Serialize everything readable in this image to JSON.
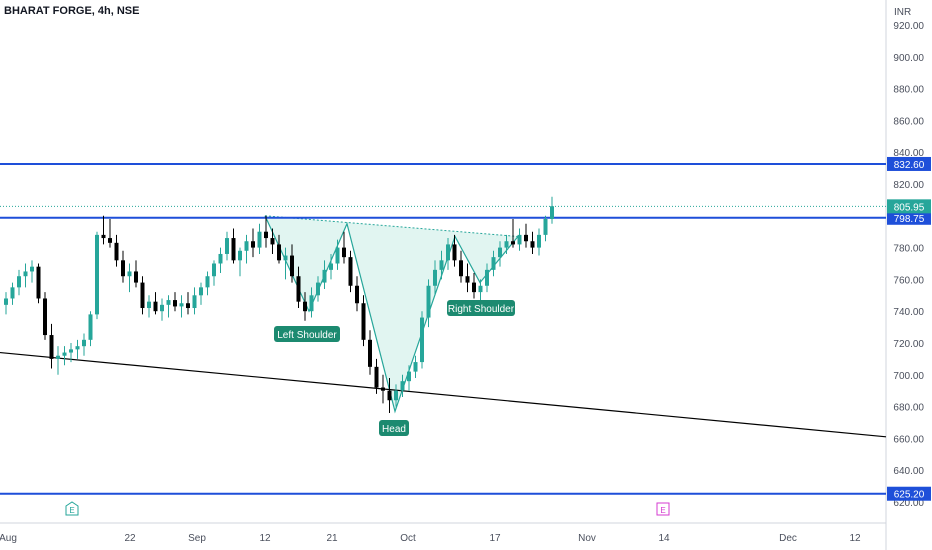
{
  "header": {
    "title": "BHARAT FORGE, 4h, NSE"
  },
  "colors": {
    "up": "#26a69a",
    "down": "#000000",
    "level_line": "#1e4fd9",
    "trend_line": "#000000",
    "pattern_stroke": "#26a69a",
    "pattern_fill": "#d9f2ee",
    "label_bg": "#1c8a70",
    "price_badge": "#26a69a",
    "event_green": "#26a69a",
    "event_pink": "#d63bd0"
  },
  "chart_data": {
    "type": "candlestick",
    "title": "BHARAT FORGE, 4h, NSE",
    "currency": "INR",
    "ylim": [
      610,
      930
    ],
    "y_ticks": [
      "920.00",
      "900.00",
      "880.00",
      "860.00",
      "840.00",
      "820.00",
      "800.00",
      "780.00",
      "760.00",
      "740.00",
      "720.00",
      "700.00",
      "680.00",
      "660.00",
      "640.00",
      "620.00"
    ],
    "x_ticks": [
      "Aug",
      "22",
      "Sep",
      "12",
      "21",
      "Oct",
      "17",
      "Nov",
      "14",
      "Dec",
      "12"
    ],
    "horizontal_levels": [
      {
        "value": 832.6,
        "label": "832.60"
      },
      {
        "value": 798.75,
        "label": "798.75"
      },
      {
        "value": 625.2,
        "label": "625.20"
      }
    ],
    "last_price": {
      "value": 805.95,
      "label": "805.95"
    },
    "trend_line": {
      "start": 714,
      "end": 661
    },
    "pattern": {
      "name": "inverse head and shoulders",
      "labels": [
        "Left Shoulder",
        "Head",
        "Right Shoulder"
      ]
    },
    "events": [
      {
        "type": "earnings",
        "label": "E",
        "style": "green"
      },
      {
        "type": "earnings",
        "label": "E",
        "style": "pink"
      }
    ],
    "candles": [
      [
        744,
        752,
        738,
        748
      ],
      [
        748,
        758,
        744,
        755
      ],
      [
        755,
        766,
        750,
        762
      ],
      [
        762,
        770,
        755,
        765
      ],
      [
        765,
        772,
        758,
        768
      ],
      [
        768,
        770,
        745,
        748
      ],
      [
        748,
        752,
        722,
        725
      ],
      [
        725,
        732,
        704,
        710
      ],
      [
        710,
        718,
        700,
        712
      ],
      [
        712,
        718,
        706,
        714
      ],
      [
        714,
        720,
        708,
        716
      ],
      [
        716,
        722,
        710,
        718
      ],
      [
        718,
        726,
        712,
        722
      ],
      [
        722,
        740,
        718,
        738
      ],
      [
        738,
        790,
        735,
        788
      ],
      [
        788,
        800,
        782,
        786
      ],
      [
        786,
        798,
        780,
        783
      ],
      [
        783,
        788,
        768,
        772
      ],
      [
        772,
        778,
        758,
        762
      ],
      [
        762,
        770,
        752,
        765
      ],
      [
        765,
        772,
        755,
        758
      ],
      [
        758,
        762,
        738,
        742
      ],
      [
        742,
        750,
        736,
        746
      ],
      [
        746,
        752,
        738,
        740
      ],
      [
        740,
        748,
        734,
        744
      ],
      [
        744,
        750,
        736,
        747
      ],
      [
        747,
        752,
        740,
        743
      ],
      [
        743,
        750,
        736,
        745
      ],
      [
        745,
        752,
        738,
        742
      ],
      [
        742,
        755,
        738,
        750
      ],
      [
        750,
        758,
        744,
        755
      ],
      [
        755,
        765,
        750,
        762
      ],
      [
        762,
        772,
        756,
        770
      ],
      [
        770,
        780,
        764,
        776
      ],
      [
        776,
        790,
        772,
        786
      ],
      [
        786,
        792,
        770,
        772
      ],
      [
        772,
        780,
        762,
        778
      ],
      [
        778,
        788,
        770,
        784
      ],
      [
        784,
        792,
        774,
        780
      ],
      [
        780,
        795,
        776,
        790
      ],
      [
        790,
        800,
        780,
        786
      ],
      [
        786,
        792,
        776,
        782
      ],
      [
        782,
        788,
        770,
        772
      ],
      [
        772,
        780,
        760,
        775
      ],
      [
        775,
        782,
        758,
        762
      ],
      [
        762,
        768,
        742,
        746
      ],
      [
        746,
        752,
        734,
        740
      ],
      [
        740,
        755,
        736,
        750
      ],
      [
        750,
        762,
        746,
        758
      ],
      [
        758,
        772,
        754,
        766
      ],
      [
        766,
        776,
        760,
        770
      ],
      [
        770,
        785,
        766,
        780
      ],
      [
        780,
        790,
        770,
        774
      ],
      [
        774,
        778,
        752,
        756
      ],
      [
        756,
        762,
        740,
        745
      ],
      [
        745,
        750,
        718,
        722
      ],
      [
        722,
        728,
        700,
        705
      ],
      [
        705,
        710,
        688,
        692
      ],
      [
        692,
        700,
        682,
        690
      ],
      [
        690,
        698,
        676,
        684
      ],
      [
        684,
        694,
        680,
        690
      ],
      [
        690,
        700,
        686,
        696
      ],
      [
        696,
        706,
        690,
        702
      ],
      [
        702,
        712,
        698,
        708
      ],
      [
        708,
        740,
        704,
        736
      ],
      [
        736,
        760,
        730,
        756
      ],
      [
        756,
        772,
        750,
        766
      ],
      [
        766,
        778,
        760,
        772
      ],
      [
        772,
        786,
        766,
        782
      ],
      [
        782,
        788,
        768,
        772
      ],
      [
        772,
        778,
        758,
        762
      ],
      [
        762,
        770,
        752,
        758
      ],
      [
        758,
        764,
        748,
        752
      ],
      [
        752,
        760,
        746,
        756
      ],
      [
        756,
        770,
        752,
        766
      ],
      [
        766,
        778,
        762,
        774
      ],
      [
        774,
        784,
        768,
        780
      ],
      [
        780,
        788,
        776,
        784
      ],
      [
        784,
        798,
        780,
        782
      ],
      [
        782,
        792,
        778,
        788
      ],
      [
        788,
        795,
        780,
        784
      ],
      [
        784,
        790,
        776,
        780
      ],
      [
        780,
        792,
        775,
        788
      ],
      [
        788,
        800,
        784,
        798
      ],
      [
        798,
        812,
        795,
        806
      ]
    ]
  }
}
